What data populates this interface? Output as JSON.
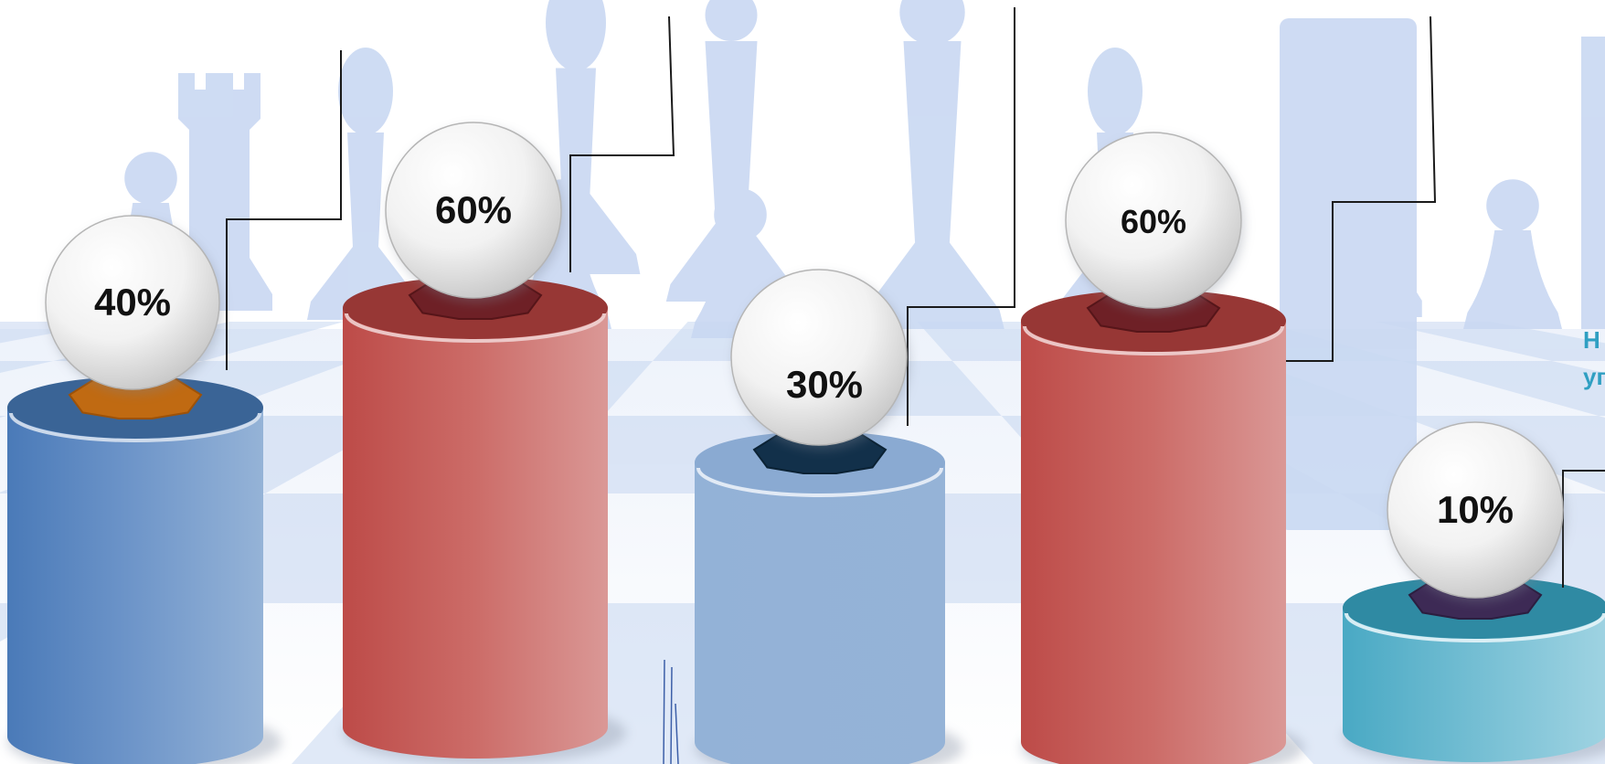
{
  "chart_data": {
    "type": "bar",
    "style": "3d-cylinders-with-spheres",
    "categories": [
      "",
      "",
      "",
      "",
      ""
    ],
    "values": [
      40,
      60,
      30,
      60,
      10
    ],
    "value_labels": [
      "40%",
      "60%",
      "30%",
      "60%",
      "10%"
    ],
    "unit": "%",
    "title": "",
    "xlabel": "",
    "ylabel": "",
    "grid": false,
    "legend": "none",
    "background": "chess-pieces-watermark",
    "colors": {
      "bar_blue": "#4f81bd",
      "bar_red": "#c0504d",
      "bar_light_blue": "#95b3d7",
      "bar_teal": "#4bacc6",
      "sphere": "#f2f2f2",
      "side_text": "#2f9fc2"
    }
  },
  "side_text": {
    "line1": "Н",
    "line2": "уп"
  }
}
